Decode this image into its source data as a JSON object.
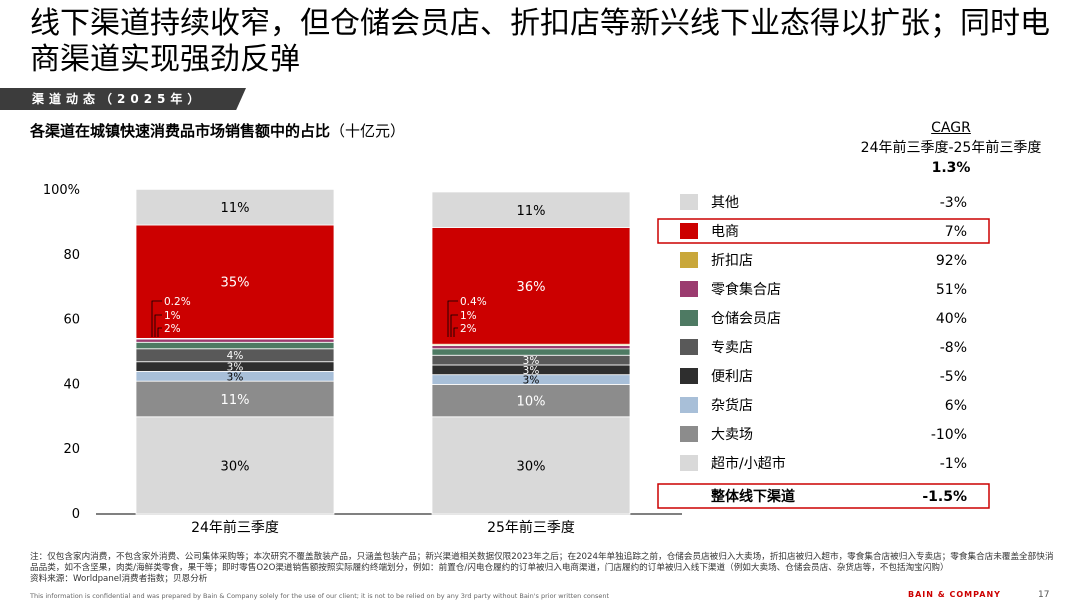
{
  "header": {
    "title": "线下渠道持续收窄，但仓储会员店、折扣店等新兴线下业态得以扩张；同时电商渠道实现强劲反弹",
    "section_label": "渠道动态（2025年）",
    "subtitle": "各渠道在城镇快速消费品市场销售额中的占比",
    "subtitle_unit": "（十亿元）"
  },
  "cagr_header": {
    "label": "CAGR",
    "period": "24年前三季度-25年前三季度",
    "overall": "1.3%"
  },
  "chart_data": {
    "type": "bar",
    "stacked": true,
    "title": "各渠道在城镇快速消费品市场销售额中的占比（十亿元）",
    "categories": [
      "24年前三季度",
      "25年前三季度"
    ],
    "ylim": [
      0,
      100
    ],
    "yticks": [
      0,
      20,
      40,
      60,
      80,
      100
    ],
    "ytick_labels": [
      "0",
      "20",
      "40",
      "60",
      "80",
      "100%"
    ],
    "series": [
      {
        "name": "超市/小超市",
        "color": "#d9d9d9",
        "values": [
          30,
          30
        ],
        "labels": [
          "30%",
          "30%"
        ],
        "label_color": "#000000"
      },
      {
        "name": "大卖场",
        "color": "#8c8c8c",
        "values": [
          11,
          10
        ],
        "labels": [
          "11%",
          "10%"
        ],
        "label_color": "#ffffff"
      },
      {
        "name": "杂货店",
        "color": "#a8bfd8",
        "values": [
          3,
          3
        ],
        "labels": [
          "3%",
          "3%"
        ],
        "label_color": "#000000"
      },
      {
        "name": "便利店",
        "color": "#2e2e2e",
        "values": [
          3,
          3
        ],
        "labels": [
          "3%",
          "3%"
        ],
        "label_color": "#ffffff"
      },
      {
        "name": "专卖店",
        "color": "#595959",
        "values": [
          4,
          3
        ],
        "labels": [
          "4%",
          "3%"
        ],
        "label_color": "#ffffff"
      },
      {
        "name": "仓储会员店",
        "color": "#4e7a63",
        "values": [
          2,
          2
        ],
        "labels": [
          "2%",
          "2%"
        ],
        "label_color": "#ffffff"
      },
      {
        "name": "零食集合店",
        "color": "#9b3b6f",
        "values": [
          1,
          1
        ],
        "labels": [
          "1%",
          "1%"
        ],
        "label_color": "#ffffff"
      },
      {
        "name": "折扣店",
        "color": "#c9a73a",
        "values": [
          0.2,
          0.4
        ],
        "labels": [
          "0.2%",
          "0.4%"
        ],
        "label_color": "#ffffff"
      },
      {
        "name": "电商",
        "color": "#cc0000",
        "values": [
          35,
          36
        ],
        "labels": [
          "35%",
          "36%"
        ],
        "label_color": "#ffffff"
      },
      {
        "name": "其他",
        "color": "#d9d9d9",
        "values": [
          11,
          11
        ],
        "labels": [
          "11%",
          "11%"
        ],
        "label_color": "#000000"
      }
    ],
    "legend": [
      {
        "name": "其他",
        "color": "#d9d9d9",
        "cagr": "-3%",
        "highlight": false
      },
      {
        "name": "电商",
        "color": "#cc0000",
        "cagr": "7%",
        "highlight": true
      },
      {
        "name": "折扣店",
        "color": "#c9a73a",
        "cagr": "92%",
        "highlight": false
      },
      {
        "name": "零食集合店",
        "color": "#9b3b6f",
        "cagr": "51%",
        "highlight": false
      },
      {
        "name": "仓储会员店",
        "color": "#4e7a63",
        "cagr": "40%",
        "highlight": false
      },
      {
        "name": "专卖店",
        "color": "#595959",
        "cagr": "-8%",
        "highlight": false
      },
      {
        "name": "便利店",
        "color": "#2e2e2e",
        "cagr": "-5%",
        "highlight": false
      },
      {
        "name": "杂货店",
        "color": "#a8bfd8",
        "cagr": "6%",
        "highlight": false
      },
      {
        "name": "大卖场",
        "color": "#8c8c8c",
        "cagr": "-10%",
        "highlight": false
      },
      {
        "name": "超市/小超市",
        "color": "#d9d9d9",
        "cagr": "-1%",
        "highlight": false
      }
    ],
    "total_row": {
      "name": "整体线下渠道",
      "cagr": "-1.5%"
    }
  },
  "footer": {
    "note": "注：仅包含家内消费，不包含家外消费、公司集体采购等；本次研究不覆盖散装产品，只涵盖包装产品；新兴渠道相关数据仅限2023年之后；在2024年单独追踪之前，仓储会员店被归入大卖场，折扣店被归入超市，零食集合店被归入专卖店；零食集合店未覆盖全部快消品品类，如不含坚果，肉类/海鲜类零食，果干等；即时零售O2O渠道销售额按照实际履约终端划分，例如：前置仓/闪电仓履约的订单被归入电商渠道，门店履约的订单被归入线下渠道（例如大卖场、仓储会员店、杂货店等，不包括淘宝闪购）",
    "source": "资料来源：Worldpanel消费者指数；贝恩分析",
    "confidential": "This information is confidential and was prepared by Bain & Company solely for the use of our client; it is not to be relied on by any 3rd party without Bain's prior written consent",
    "brand": "BAIN & COMPANY",
    "page": "17"
  }
}
